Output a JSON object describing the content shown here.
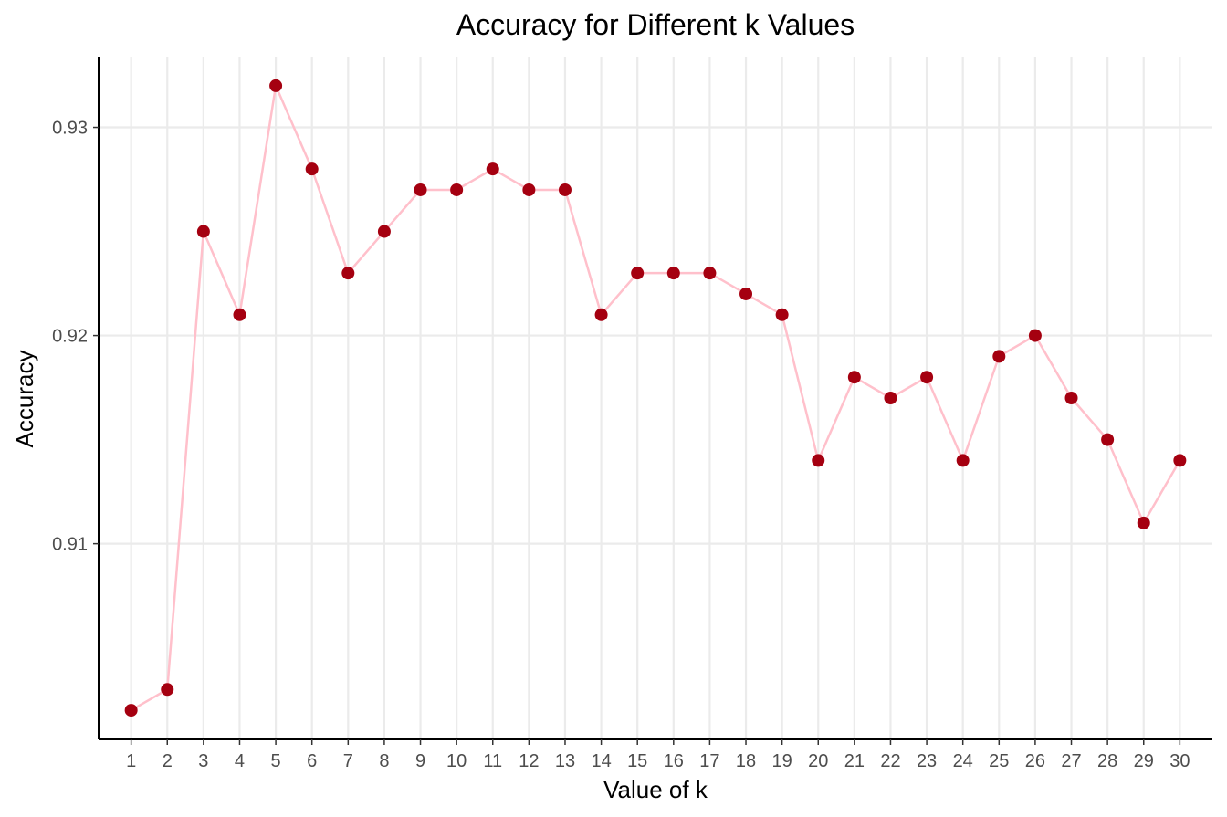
{
  "chart_data": {
    "type": "line",
    "title": "Accuracy for Different k Values",
    "xlabel": "Value of k",
    "ylabel": "Accuracy",
    "x": [
      1,
      2,
      3,
      4,
      5,
      6,
      7,
      8,
      9,
      10,
      11,
      12,
      13,
      14,
      15,
      16,
      17,
      18,
      19,
      20,
      21,
      22,
      23,
      24,
      25,
      26,
      27,
      28,
      29,
      30
    ],
    "series": [
      {
        "values": [
          0.902,
          0.903,
          0.925,
          0.921,
          0.932,
          0.928,
          0.923,
          0.925,
          0.927,
          0.927,
          0.928,
          0.927,
          0.927,
          0.921,
          0.923,
          0.923,
          0.923,
          0.922,
          0.921,
          0.914,
          0.918,
          0.917,
          0.918,
          0.914,
          0.919,
          0.92,
          0.917,
          0.915,
          0.911,
          0.914
        ],
        "line_color": "#ffc0cb",
        "point_color": "#a50010"
      }
    ],
    "xticks": [
      "1",
      "2",
      "3",
      "4",
      "5",
      "6",
      "7",
      "8",
      "9",
      "10",
      "11",
      "12",
      "13",
      "14",
      "15",
      "16",
      "17",
      "18",
      "19",
      "20",
      "21",
      "22",
      "23",
      "24",
      "25",
      "26",
      "27",
      "28",
      "29",
      "30"
    ],
    "yticks": [
      0.91,
      0.92,
      0.93
    ],
    "ytick_labels": [
      "0.91",
      "0.92",
      "0.93"
    ],
    "xlim": [
      0.1,
      30.9
    ],
    "ylim": [
      0.9006,
      0.9334
    ],
    "grid": true
  }
}
